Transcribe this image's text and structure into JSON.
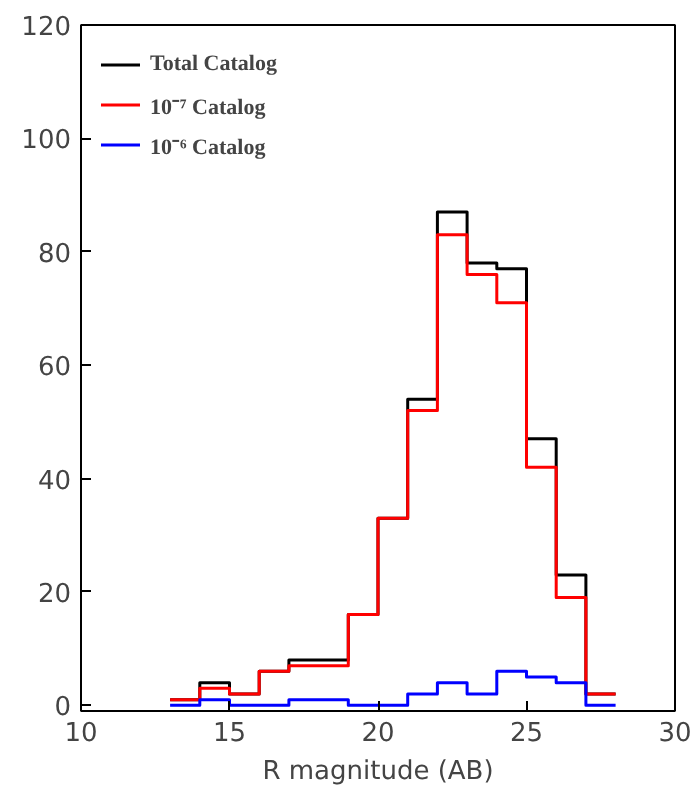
{
  "chart_data": {
    "type": "histogram",
    "xlabel": "R magnitude (AB)",
    "bins": [
      13,
      14,
      15,
      16,
      17,
      18,
      19,
      20,
      21,
      22,
      23,
      24,
      25,
      26,
      27,
      28
    ],
    "series": [
      {
        "name": "Total Catalog",
        "color": "#000000",
        "values": [
          1,
          4,
          2,
          6,
          8,
          8,
          16,
          33,
          54,
          87,
          78,
          77,
          47,
          23,
          2
        ]
      },
      {
        "name": "10⁻⁷ Catalog",
        "color": "#ff0000",
        "values": [
          1,
          3,
          2,
          6,
          7,
          7,
          16,
          33,
          52,
          83,
          76,
          71,
          42,
          19,
          2
        ]
      },
      {
        "name": "10⁻⁶ Catalog",
        "color": "#0000ff",
        "values": [
          0,
          1,
          0,
          0,
          1,
          1,
          0,
          0,
          2,
          4,
          2,
          6,
          5,
          4,
          0
        ]
      }
    ],
    "xlim": [
      10,
      30
    ],
    "ylim": [
      -1,
      120
    ],
    "xticks": [
      10,
      15,
      20,
      25,
      30
    ],
    "yticks": [
      0,
      20,
      40,
      60,
      80,
      100,
      120
    ],
    "grid": false,
    "legend": "top left"
  }
}
